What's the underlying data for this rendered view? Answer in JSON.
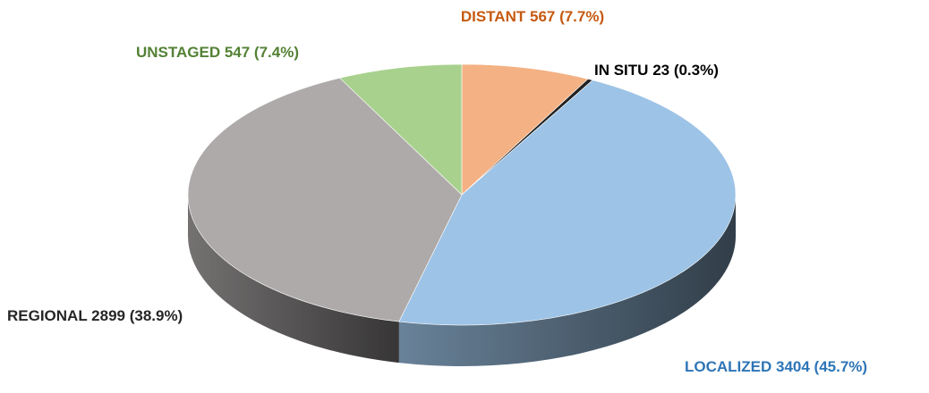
{
  "chart_data": {
    "type": "pie",
    "categories": [
      "DISTANT",
      "IN SITU",
      "LOCALIZED",
      "REGIONAL",
      "UNSTAGED"
    ],
    "values": [
      567,
      23,
      3404,
      2899,
      547
    ],
    "value_labels": [
      "567 (7.7%)",
      "23 (0.3%)",
      "3404 (45.7%)",
      "2899 (38.9%)",
      "547 (7.4%)"
    ],
    "colors": [
      "#f4b183",
      "#222222",
      "#9dc3e6",
      "#aeaaaa",
      "#a9d18e"
    ],
    "label_colors": [
      "#c55a11",
      "#000000",
      "#2e75b6",
      "#262626",
      "#538135"
    ]
  }
}
